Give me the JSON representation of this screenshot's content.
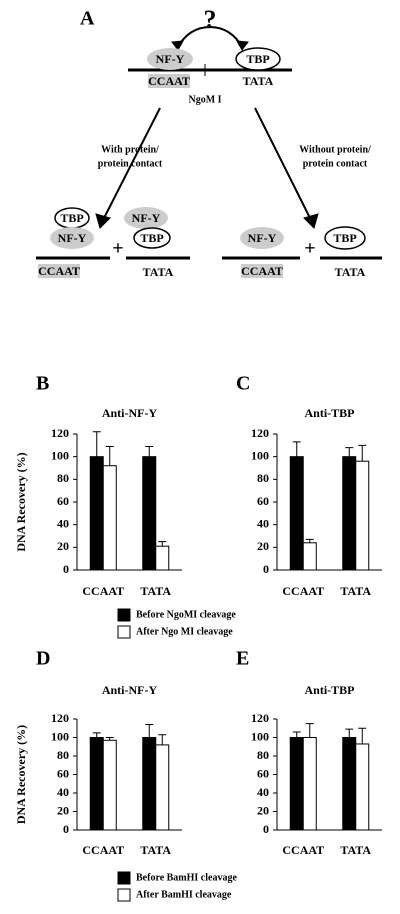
{
  "diagram": {
    "texts": [
      "A",
      "?",
      "NF-Y",
      "TBP",
      "CCAAT",
      "TATA",
      "NgoM I",
      "With protein/",
      "protein contact",
      "Without protein/",
      "protein contact",
      "TBP",
      "NF-Y",
      "CCAAT",
      "+",
      "NF-Y",
      "TBP",
      "TATA",
      "NF-Y",
      "CCAAT",
      "+",
      "TBP",
      "TATA"
    ]
  },
  "chart_data": [
    {
      "type": "bar",
      "panel": "B",
      "title": "Anti-NF-Y",
      "ylabel": "DNA Recovery (%)",
      "categories": [
        "CCAAT",
        "TATA"
      ],
      "series": [
        {
          "name": "Before NgoMI cleavage",
          "color": "#000000",
          "values": [
            100,
            100
          ],
          "errors": [
            22,
            9
          ]
        },
        {
          "name": "After Ngo MI cleavage",
          "color": "#ffffff",
          "values": [
            92,
            21
          ],
          "errors": [
            17,
            4
          ]
        }
      ],
      "ylim": [
        0,
        120
      ],
      "yticks": [
        0,
        20,
        40,
        60,
        80,
        100,
        120
      ]
    },
    {
      "type": "bar",
      "panel": "C",
      "title": "Anti-TBP",
      "categories": [
        "CCAAT",
        "TATA"
      ],
      "series": [
        {
          "color": "#000000",
          "values": [
            100,
            100
          ],
          "errors": [
            13,
            8
          ]
        },
        {
          "color": "#ffffff",
          "values": [
            24,
            96
          ],
          "errors": [
            3,
            14
          ]
        }
      ],
      "ylim": [
        0,
        120
      ],
      "yticks": [
        0,
        20,
        40,
        60,
        80,
        100,
        120
      ]
    },
    {
      "type": "bar",
      "panel": "D",
      "title": "Anti-NF-Y",
      "ylabel": "DNA Recovery (%)",
      "categories": [
        "CCAAT",
        "TATA"
      ],
      "series": [
        {
          "name": "Before BamHI cleavage",
          "color": "#000000",
          "values": [
            100,
            100
          ],
          "errors": [
            5,
            14
          ]
        },
        {
          "name": "After BamHI cleavage",
          "color": "#ffffff",
          "values": [
            97,
            92
          ],
          "errors": [
            3,
            11
          ]
        }
      ],
      "ylim": [
        0,
        120
      ],
      "yticks": [
        0,
        20,
        40,
        60,
        80,
        100,
        120
      ]
    },
    {
      "type": "bar",
      "panel": "E",
      "title": "Anti-TBP",
      "categories": [
        "CCAAT",
        "TATA"
      ],
      "series": [
        {
          "color": "#000000",
          "values": [
            100,
            100
          ],
          "errors": [
            6,
            9
          ]
        },
        {
          "color": "#ffffff",
          "values": [
            100,
            93
          ],
          "errors": [
            15,
            17
          ]
        }
      ],
      "ylim": [
        0,
        120
      ],
      "yticks": [
        0,
        20,
        40,
        60,
        80,
        100,
        120
      ]
    }
  ]
}
